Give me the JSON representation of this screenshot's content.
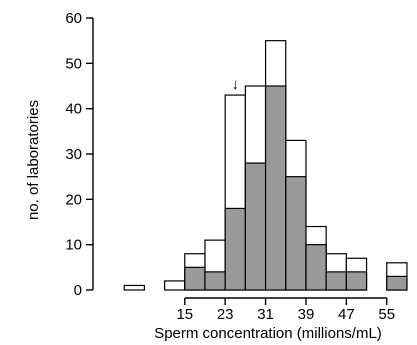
{
  "chart_data": {
    "type": "bar",
    "title": "",
    "xlabel": "Sperm concentration (millions/mL)",
    "ylabel": "no. of laboratories",
    "ylim": [
      0,
      60
    ],
    "xlim": [
      -1,
      60
    ],
    "y_ticks": [
      0,
      10,
      20,
      30,
      40,
      50,
      60
    ],
    "x_ticks": [
      15,
      23,
      31,
      39,
      47,
      55
    ],
    "bin_width": 4,
    "series": [
      {
        "name": "",
        "style": "open",
        "bins": [
          {
            "x0": 3,
            "x1": 7,
            "value": 1
          },
          {
            "x0": 11,
            "x1": 15,
            "value": 2
          },
          {
            "x0": 15,
            "x1": 19,
            "value": 8
          },
          {
            "x0": 19,
            "x1": 23,
            "value": 11
          },
          {
            "x0": 23,
            "x1": 27,
            "value": 43
          },
          {
            "x0": 27,
            "x1": 31,
            "value": 45
          },
          {
            "x0": 31,
            "x1": 35,
            "value": 55
          },
          {
            "x0": 35,
            "x1": 39,
            "value": 33
          },
          {
            "x0": 39,
            "x1": 43,
            "value": 14
          },
          {
            "x0": 43,
            "x1": 47,
            "value": 8
          },
          {
            "x0": 47,
            "x1": 51,
            "value": 7
          },
          {
            "x0": 55,
            "x1": 59,
            "value": 6
          }
        ]
      },
      {
        "name": "",
        "style": "filled",
        "color": "#9a9a9a",
        "bins": [
          {
            "x0": 11,
            "x1": 15,
            "value": 0
          },
          {
            "x0": 15,
            "x1": 19,
            "value": 5
          },
          {
            "x0": 19,
            "x1": 23,
            "value": 4
          },
          {
            "x0": 23,
            "x1": 27,
            "value": 18
          },
          {
            "x0": 27,
            "x1": 31,
            "value": 28
          },
          {
            "x0": 31,
            "x1": 35,
            "value": 45
          },
          {
            "x0": 35,
            "x1": 39,
            "value": 25
          },
          {
            "x0": 39,
            "x1": 43,
            "value": 10
          },
          {
            "x0": 43,
            "x1": 47,
            "value": 4
          },
          {
            "x0": 47,
            "x1": 51,
            "value": 4
          },
          {
            "x0": 55,
            "x1": 59,
            "value": 3
          }
        ]
      }
    ],
    "marker": {
      "x": 25,
      "glyph": "↓"
    },
    "grid": false,
    "legend": "none"
  }
}
